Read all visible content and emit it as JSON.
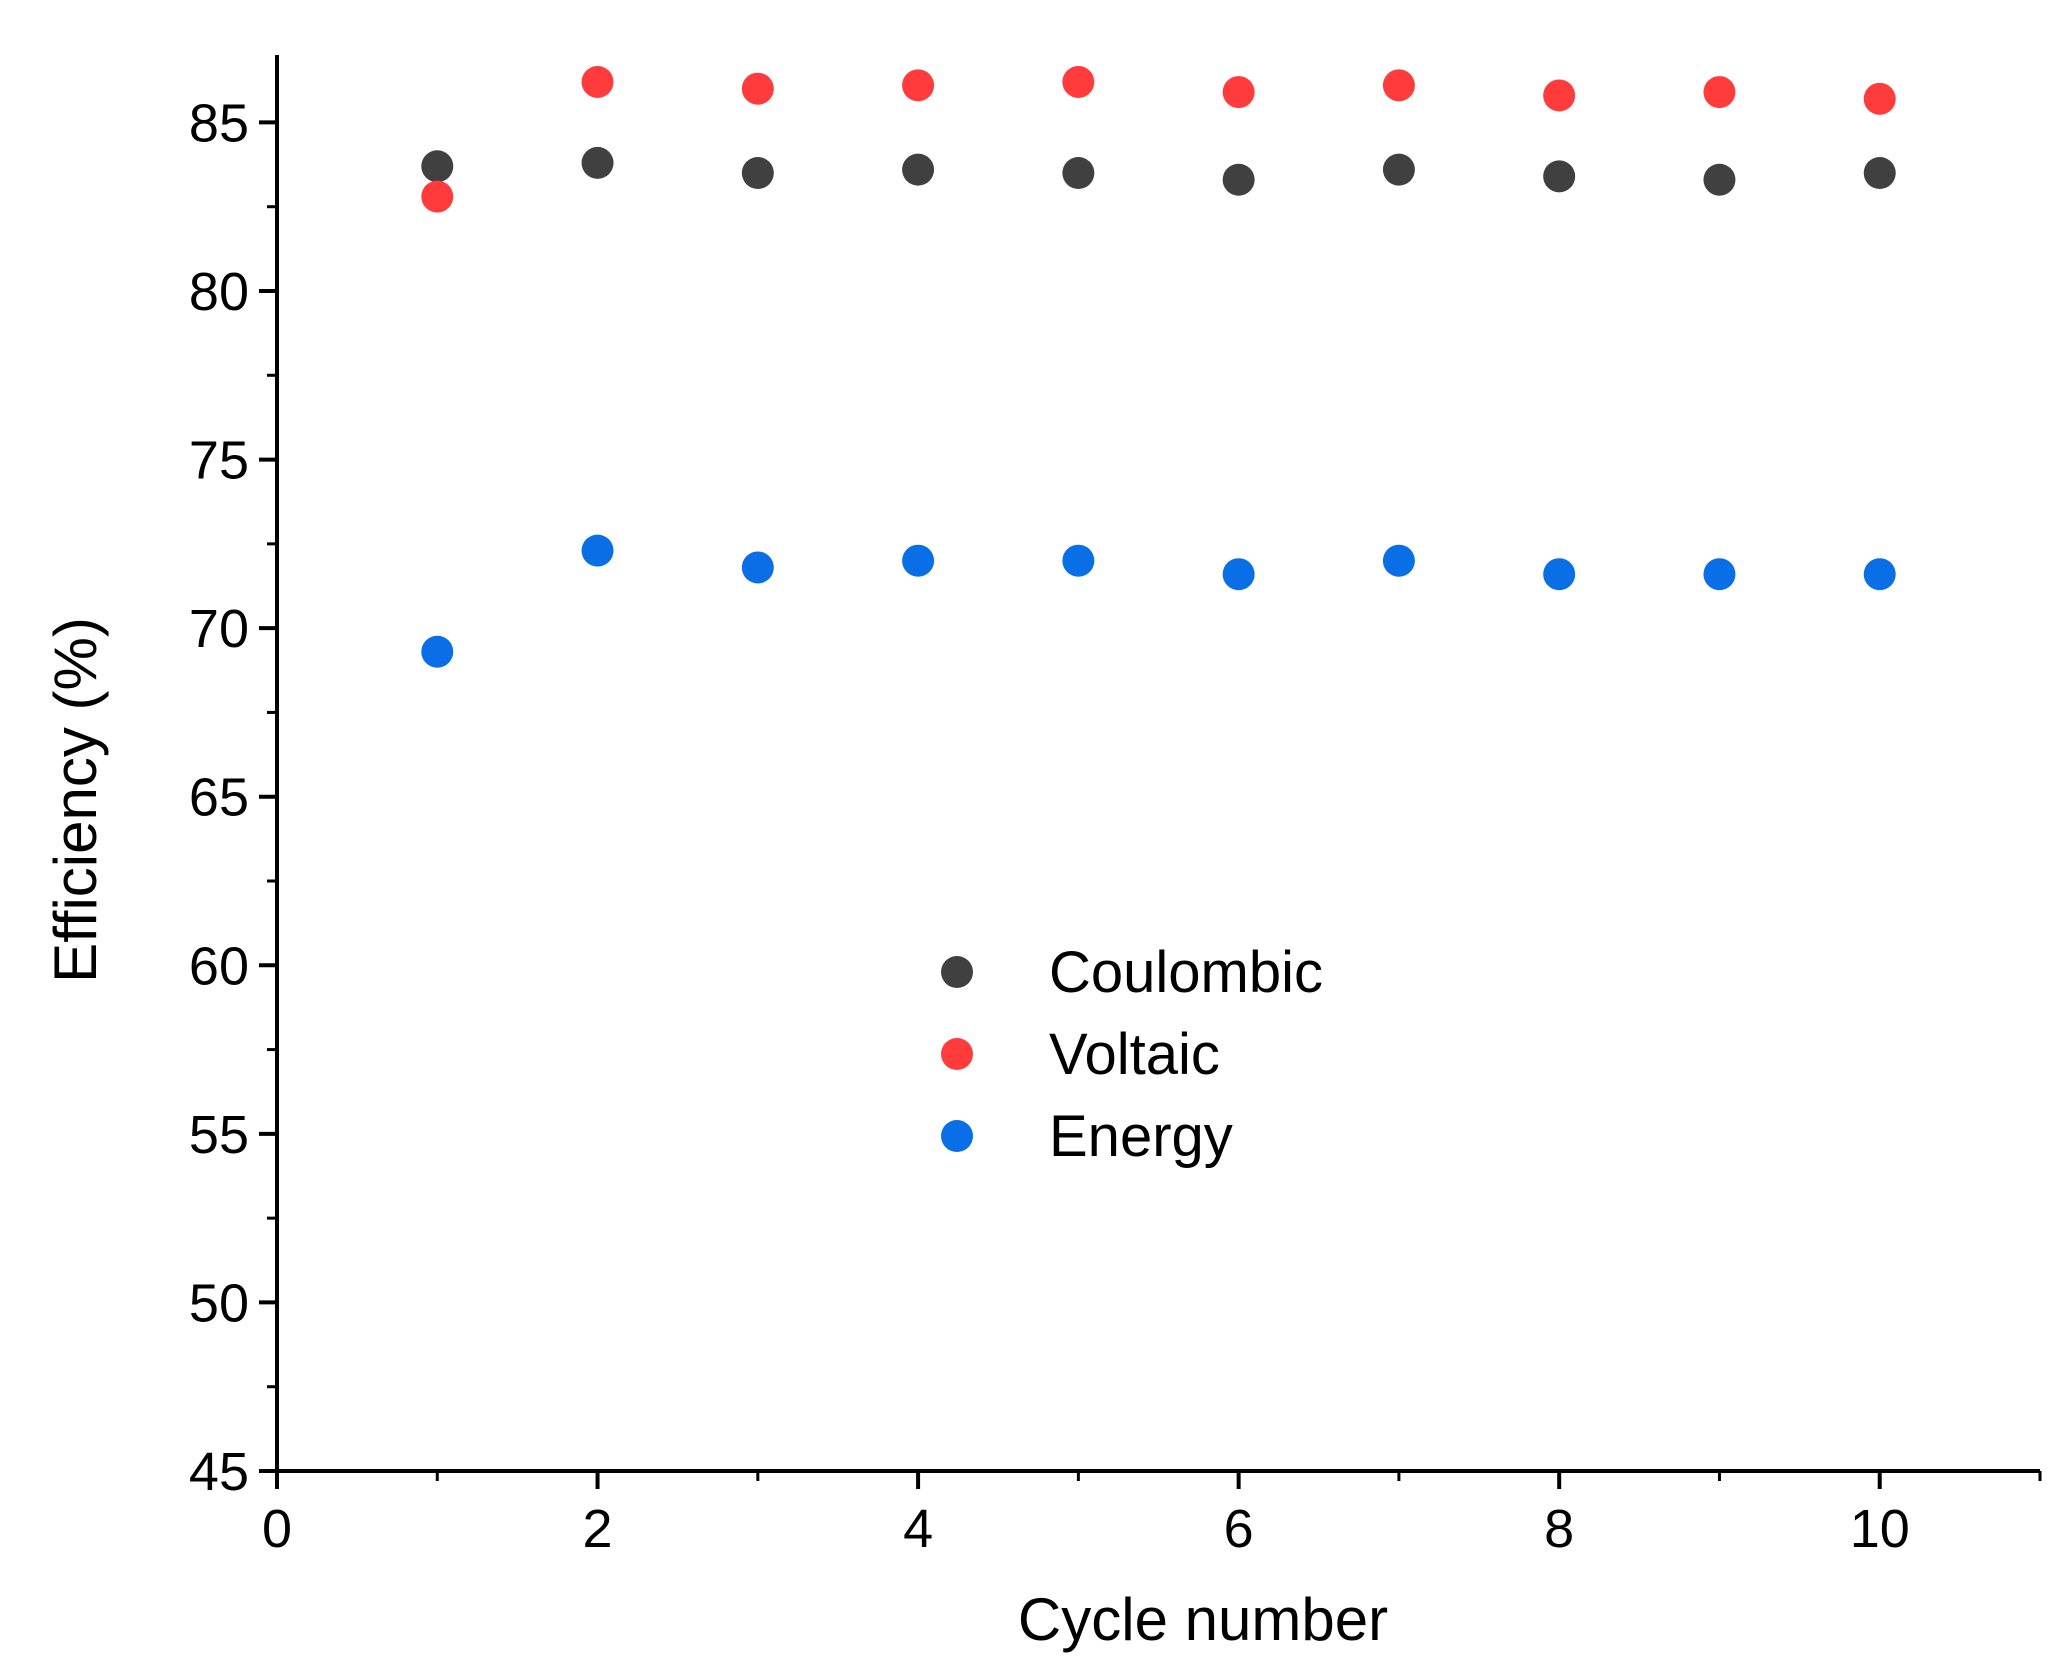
{
  "chart_data": {
    "type": "scatter",
    "title": "",
    "xlabel": "Cycle number",
    "ylabel": "Efficiency (%)",
    "xlim": [
      0,
      11
    ],
    "ylim": [
      45,
      87
    ],
    "x_ticks": [
      0,
      2,
      4,
      6,
      8,
      10
    ],
    "x_minor_ticks": [
      1,
      3,
      5,
      7,
      9,
      11
    ],
    "y_ticks": [
      45,
      50,
      55,
      60,
      65,
      70,
      75,
      80,
      85
    ],
    "y_minor_ticks": [
      47.5,
      52.5,
      57.5,
      62.5,
      67.5,
      72.5,
      77.5,
      82.5
    ],
    "grid": false,
    "legend_position": "center",
    "x": [
      1,
      2,
      3,
      4,
      5,
      6,
      7,
      8,
      9,
      10
    ],
    "series": [
      {
        "name": "Coulombic",
        "color": "#404040",
        "values": [
          83.7,
          83.8,
          83.5,
          83.6,
          83.5,
          83.3,
          83.6,
          83.4,
          83.3,
          83.5
        ]
      },
      {
        "name": "Voltaic",
        "color": "#ff3b3b",
        "values": [
          82.8,
          86.2,
          86.0,
          86.1,
          86.2,
          85.9,
          86.1,
          85.8,
          85.9,
          85.7
        ]
      },
      {
        "name": "Energy",
        "color": "#0a6fe6",
        "values": [
          69.3,
          72.3,
          71.8,
          72.0,
          72.0,
          71.6,
          72.0,
          71.6,
          71.6,
          71.6
        ]
      }
    ]
  }
}
